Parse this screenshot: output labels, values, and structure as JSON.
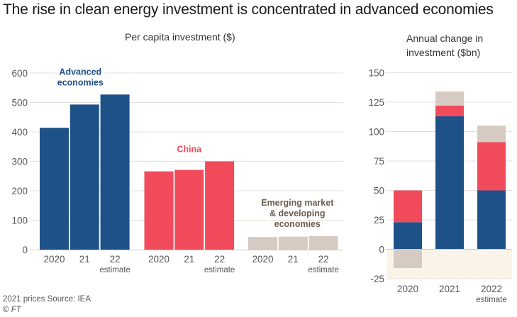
{
  "title": "The rise in clean energy investment is concentrated in advanced economies",
  "footer": {
    "note": "2021 prices   Source: IEA",
    "copyright_symbol": "©",
    "copyright_owner": "FT"
  },
  "colors": {
    "advanced": "#1f5189",
    "china": "#f14b5b",
    "emerging": "#d5cbc3",
    "grid": "#e6e0da",
    "axis": "#cfc8c0",
    "negative_band": "#fbf5ec"
  },
  "chart_data": [
    {
      "type": "bar",
      "title": "Per capita investment ($)",
      "xlabel": "",
      "ylabel": "",
      "ylim": [
        0,
        600
      ],
      "yticks": [
        0,
        100,
        200,
        300,
        400,
        500,
        600
      ],
      "grid": true,
      "groups": [
        {
          "name": "Advanced economies",
          "label_lines": [
            "Advanced",
            "economies"
          ],
          "color_key": "advanced",
          "categories": [
            "2020",
            "21",
            "22"
          ],
          "category_sublabels": [
            "",
            "",
            "estimate"
          ],
          "values": [
            414,
            493,
            527
          ]
        },
        {
          "name": "China",
          "label_lines": [
            "China"
          ],
          "color_key": "china",
          "categories": [
            "2020",
            "21",
            "22"
          ],
          "category_sublabels": [
            "",
            "",
            "estimate"
          ],
          "values": [
            266,
            271,
            300
          ]
        },
        {
          "name": "Emerging market & developing economies",
          "label_lines": [
            "Emerging market",
            "& developing",
            "economies"
          ],
          "color_key": "emerging",
          "categories": [
            "2020",
            "21",
            "22"
          ],
          "category_sublabels": [
            "",
            "",
            "estimate"
          ],
          "values": [
            43,
            44,
            46
          ]
        }
      ]
    },
    {
      "type": "bar",
      "stacked": true,
      "title": "Annual change in investment ($bn)",
      "title_lines": [
        "Annual change in",
        "investment ($bn)"
      ],
      "xlabel": "",
      "ylabel": "",
      "ylim": [
        -25,
        150
      ],
      "yticks": [
        -25,
        0,
        25,
        50,
        75,
        100,
        125,
        150
      ],
      "grid": true,
      "categories": [
        "2020",
        "2021",
        "2022"
      ],
      "category_sublabels": [
        "",
        "",
        "estimate"
      ],
      "series": [
        {
          "name": "Advanced economies",
          "color_key": "advanced",
          "values": [
            23,
            113,
            50
          ]
        },
        {
          "name": "China",
          "color_key": "china",
          "values": [
            27,
            9,
            41
          ]
        },
        {
          "name": "Emerging market & developing economies",
          "color_key": "emerging",
          "values": [
            -16,
            12,
            14
          ]
        }
      ]
    }
  ]
}
